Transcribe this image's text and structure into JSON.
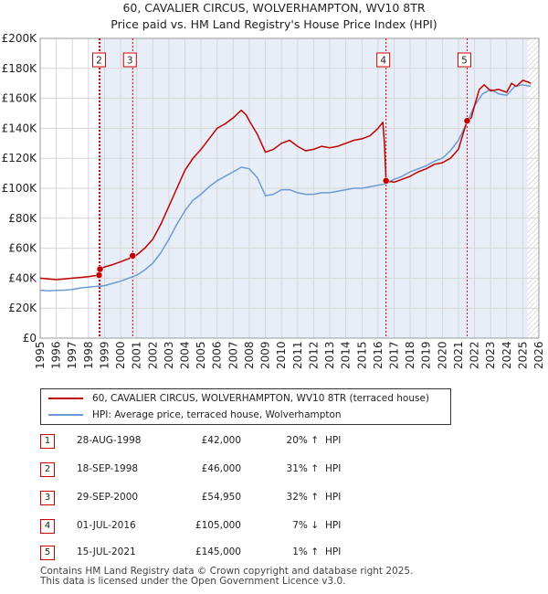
{
  "chart_data": {
    "type": "line",
    "title": "60, CAVALIER CIRCUS, WOLVERHAMPTON, WV10 8TR",
    "subtitle": "Price paid vs. HM Land Registry's House Price Index (HPI)",
    "xlim": [
      1995,
      2026
    ],
    "ylim": [
      0,
      200000
    ],
    "y_ticks": [
      0,
      20000,
      40000,
      60000,
      80000,
      100000,
      120000,
      140000,
      160000,
      180000,
      200000
    ],
    "y_tick_labels": [
      "£0",
      "£20K",
      "£40K",
      "£60K",
      "£80K",
      "£100K",
      "£120K",
      "£140K",
      "£160K",
      "£180K",
      "£200K"
    ],
    "x_ticks": [
      1995,
      1996,
      1997,
      1998,
      1999,
      2000,
      2001,
      2002,
      2003,
      2004,
      2005,
      2006,
      2007,
      2008,
      2009,
      2010,
      2011,
      2012,
      2013,
      2014,
      2015,
      2016,
      2017,
      2018,
      2019,
      2020,
      2021,
      2022,
      2023,
      2024,
      2025,
      2026
    ],
    "x_tick_labels": [
      "1995",
      "1996",
      "1997",
      "1998",
      "1999",
      "2000",
      "2001",
      "2002",
      "2003",
      "2004",
      "2005",
      "2006",
      "2007",
      "2008",
      "2009",
      "2010",
      "2011",
      "2012",
      "2013",
      "2014",
      "2015",
      "2016",
      "2017",
      "2018",
      "2019",
      "2020",
      "2021",
      "2022",
      "2023",
      "2024",
      "2025",
      "2026"
    ],
    "grid": true,
    "forecast_start": 2025.3,
    "series": [
      {
        "name": "60, CAVALIER CIRCUS, WOLVERHAMPTON, WV10 8TR (terraced house)",
        "color": "#c00000",
        "x": [
          1995.0,
          1995.5,
          1996.0,
          1996.5,
          1997.0,
          1997.5,
          1998.0,
          1998.3,
          1998.66,
          1998.72,
          1999.0,
          1999.5,
          2000.0,
          2000.5,
          2000.75,
          2001.0,
          2001.5,
          2002.0,
          2002.5,
          2003.0,
          2003.5,
          2004.0,
          2004.5,
          2005.0,
          2005.5,
          2006.0,
          2006.5,
          2007.0,
          2007.5,
          2007.8,
          2008.0,
          2008.5,
          2009.0,
          2009.5,
          2010.0,
          2010.5,
          2011.0,
          2011.5,
          2012.0,
          2012.5,
          2013.0,
          2013.5,
          2014.0,
          2014.5,
          2015.0,
          2015.5,
          2016.0,
          2016.3,
          2016.4,
          2016.5,
          2017.0,
          2017.5,
          2018.0,
          2018.5,
          2019.0,
          2019.5,
          2020.0,
          2020.5,
          2021.0,
          2021.54,
          2021.8,
          2022.0,
          2022.3,
          2022.6,
          2023.0,
          2023.5,
          2024.0,
          2024.3,
          2024.6,
          2025.0,
          2025.3,
          2025.5
        ],
        "y": [
          40000,
          39500,
          39000,
          39500,
          40000,
          40500,
          41000,
          41500,
          42000,
          46000,
          47500,
          49000,
          51000,
          53000,
          54950,
          55500,
          60000,
          66000,
          76000,
          88000,
          100000,
          112000,
          120000,
          126000,
          133000,
          140000,
          143000,
          147000,
          152000,
          149000,
          145000,
          136000,
          124000,
          126000,
          130000,
          132000,
          128000,
          125000,
          126000,
          128000,
          127000,
          128000,
          130000,
          132000,
          133000,
          135000,
          140000,
          144000,
          130000,
          105000,
          104000,
          106000,
          108000,
          111000,
          113000,
          116000,
          117000,
          120000,
          126000,
          145000,
          147000,
          155000,
          166000,
          169000,
          165000,
          166000,
          164000,
          170000,
          168000,
          172000,
          171000,
          170000
        ]
      },
      {
        "name": "HPI: Average price, terraced house, Wolverhampton",
        "color": "#6b9bd2",
        "x": [
          1995.0,
          1995.5,
          1996.0,
          1996.5,
          1997.0,
          1997.5,
          1998.0,
          1998.5,
          1999.0,
          1999.5,
          2000.0,
          2000.5,
          2001.0,
          2001.5,
          2002.0,
          2002.5,
          2003.0,
          2003.5,
          2004.0,
          2004.5,
          2005.0,
          2005.5,
          2006.0,
          2006.5,
          2007.0,
          2007.5,
          2008.0,
          2008.5,
          2009.0,
          2009.5,
          2010.0,
          2010.5,
          2011.0,
          2011.5,
          2012.0,
          2012.5,
          2013.0,
          2013.5,
          2014.0,
          2014.5,
          2015.0,
          2015.5,
          2016.0,
          2016.5,
          2017.0,
          2017.5,
          2018.0,
          2018.5,
          2019.0,
          2019.5,
          2020.0,
          2020.5,
          2021.0,
          2021.5,
          2022.0,
          2022.5,
          2023.0,
          2023.5,
          2024.0,
          2024.5,
          2025.0,
          2025.5
        ],
        "y": [
          32000,
          31500,
          31800,
          32000,
          32500,
          33500,
          34000,
          34500,
          35000,
          36500,
          38000,
          40000,
          42000,
          45500,
          50000,
          57000,
          66000,
          76000,
          85000,
          92000,
          96000,
          101000,
          105000,
          108000,
          111000,
          114000,
          113000,
          107000,
          95000,
          96000,
          99000,
          99000,
          97000,
          96000,
          96000,
          97000,
          97000,
          98000,
          99000,
          100000,
          100000,
          101000,
          102000,
          103000,
          106000,
          108000,
          111000,
          113000,
          115000,
          118000,
          120000,
          125000,
          132000,
          143000,
          155000,
          163000,
          166000,
          163000,
          162000,
          168000,
          169000,
          168000
        ]
      }
    ],
    "markers": [
      {
        "label": "1",
        "x": 1998.66,
        "y": 42000,
        "show_box": false
      },
      {
        "label": "2",
        "x": 1998.72,
        "y": 46000,
        "show_box": true
      },
      {
        "label": "3",
        "x": 2000.75,
        "y": 54950,
        "show_box": true
      },
      {
        "label": "4",
        "x": 2016.5,
        "y": 105000,
        "show_box": true
      },
      {
        "label": "5",
        "x": 2021.54,
        "y": 145000,
        "show_box": true
      }
    ]
  },
  "legend": {
    "property_label": "60, CAVALIER CIRCUS, WOLVERHAMPTON, WV10 8TR (terraced house)",
    "hpi_label": "HPI: Average price, terraced house, Wolverhampton"
  },
  "transactions": [
    {
      "num": "1",
      "date": "28-AUG-1998",
      "price": "£42,000",
      "hpi_pct": "20% ↑",
      "hpi": "HPI"
    },
    {
      "num": "2",
      "date": "18-SEP-1998",
      "price": "£46,000",
      "hpi_pct": "31% ↑",
      "hpi": "HPI"
    },
    {
      "num": "3",
      "date": "29-SEP-2000",
      "price": "£54,950",
      "hpi_pct": "32% ↑",
      "hpi": "HPI"
    },
    {
      "num": "4",
      "date": "01-JUL-2016",
      "price": "£105,000",
      "hpi_pct": "7% ↓",
      "hpi": "HPI"
    },
    {
      "num": "5",
      "date": "15-JUL-2021",
      "price": "£145,000",
      "hpi_pct": "1% ↑",
      "hpi": "HPI"
    }
  ],
  "footer": {
    "line1": "Contains HM Land Registry data © Crown copyright and database right 2025.",
    "line2": "This data is licensed under the Open Government Licence v3.0."
  }
}
